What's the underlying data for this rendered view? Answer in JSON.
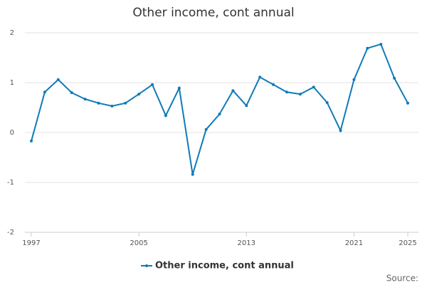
{
  "chart_data": {
    "type": "line",
    "title": "Other income, cont annual",
    "x": [
      1997,
      1998,
      1999,
      2000,
      2001,
      2002,
      2003,
      2004,
      2005,
      2006,
      2007,
      2008,
      2009,
      2010,
      2011,
      2012,
      2013,
      2014,
      2015,
      2016,
      2017,
      2018,
      2019,
      2020,
      2021,
      2022,
      2023,
      2024,
      2025
    ],
    "series": [
      {
        "name": "Other income, cont annual",
        "color": "#0f7bb8",
        "values": [
          -0.17,
          0.81,
          1.06,
          0.8,
          0.67,
          0.59,
          0.53,
          0.59,
          0.77,
          0.96,
          0.34,
          0.89,
          -0.84,
          0.06,
          0.37,
          0.84,
          0.54,
          1.11,
          0.96,
          0.81,
          0.77,
          0.91,
          0.6,
          0.04,
          1.06,
          1.69,
          1.77,
          1.09,
          0.59
        ]
      }
    ],
    "xlim": [
      1997,
      2025
    ],
    "xticks": [
      1997,
      2005,
      2013,
      2021,
      2025
    ],
    "ylim": [
      -2,
      2
    ],
    "yticks": [
      -2,
      -1,
      0,
      1,
      2
    ],
    "grid": true,
    "legend": "bottom",
    "source": "Source:"
  }
}
